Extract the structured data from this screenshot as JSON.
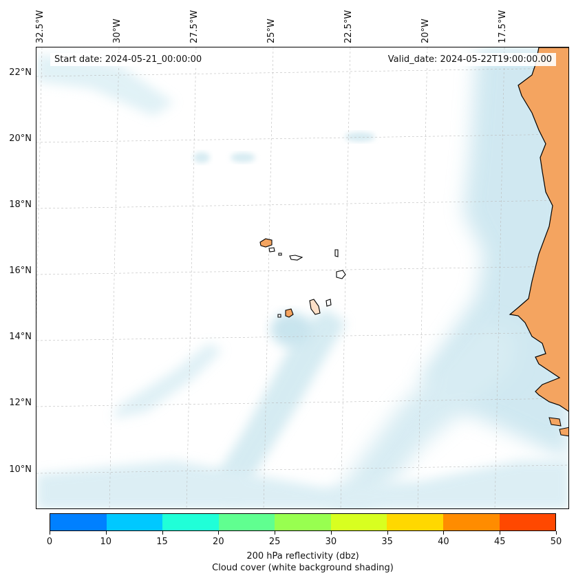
{
  "map": {
    "start_date_label": "Start date: 2024-05-21_00:00:00",
    "valid_date_label": "Valid_date: 2024-05-22T19:00:00.00",
    "longitude_labels": [
      "32.5°W",
      "30°W",
      "27.5°W",
      "25°W",
      "22.5°W",
      "20°W",
      "17.5°W"
    ],
    "latitude_labels": [
      "22°N",
      "20°N",
      "18°N",
      "16°N",
      "14°N",
      "12°N",
      "10°N"
    ],
    "land_color": "#f4a460",
    "cloud_color": "#add8e6",
    "gridline_color": "#bbbbbb"
  },
  "colorbar": {
    "ticks": [
      "0",
      "10",
      "15",
      "20",
      "25",
      "30",
      "35",
      "40",
      "45",
      "50"
    ],
    "colors": [
      "#0080ff",
      "#00c8ff",
      "#20ffd8",
      "#60ff90",
      "#98ff50",
      "#d8ff20",
      "#ffd800",
      "#ff8c00",
      "#ff4800"
    ],
    "title_line1": "200 hPa reflectivity (dbz)",
    "title_line2": "Cloud cover (white background shading)"
  }
}
